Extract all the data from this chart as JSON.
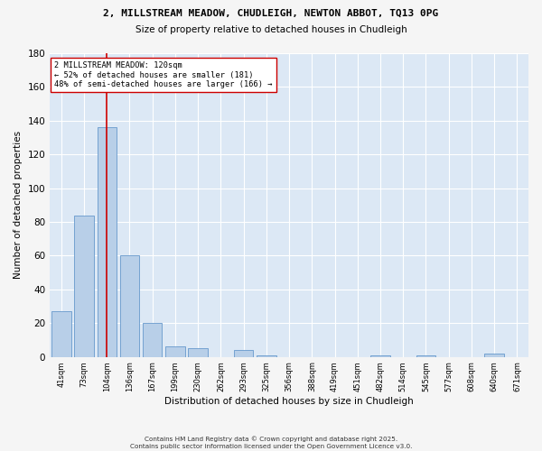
{
  "title1": "2, MILLSTREAM MEADOW, CHUDLEIGH, NEWTON ABBOT, TQ13 0PG",
  "title2": "Size of property relative to detached houses in Chudleigh",
  "xlabel": "Distribution of detached houses by size in Chudleigh",
  "ylabel": "Number of detached properties",
  "categories": [
    "41sqm",
    "73sqm",
    "104sqm",
    "136sqm",
    "167sqm",
    "199sqm",
    "230sqm",
    "262sqm",
    "293sqm",
    "325sqm",
    "356sqm",
    "388sqm",
    "419sqm",
    "451sqm",
    "482sqm",
    "514sqm",
    "545sqm",
    "577sqm",
    "608sqm",
    "640sqm",
    "671sqm"
  ],
  "values": [
    27,
    84,
    136,
    60,
    20,
    6,
    5,
    0,
    4,
    1,
    0,
    0,
    0,
    0,
    1,
    0,
    1,
    0,
    0,
    2,
    0
  ],
  "bar_color": "#b8cfe8",
  "bar_edge_color": "#6699cc",
  "vline_x_idx": 2,
  "vline_color": "#cc0000",
  "annotation_text": "2 MILLSTREAM MEADOW: 120sqm\n← 52% of detached houses are smaller (181)\n48% of semi-detached houses are larger (166) →",
  "annotation_box_color": "#ffffff",
  "annotation_box_edge": "#cc0000",
  "ylim": [
    0,
    180
  ],
  "yticks": [
    0,
    20,
    40,
    60,
    80,
    100,
    120,
    140,
    160,
    180
  ],
  "bg_color": "#dce8f5",
  "fig_color": "#f5f5f5",
  "footer1": "Contains HM Land Registry data © Crown copyright and database right 2025.",
  "footer2": "Contains public sector information licensed under the Open Government Licence v3.0."
}
